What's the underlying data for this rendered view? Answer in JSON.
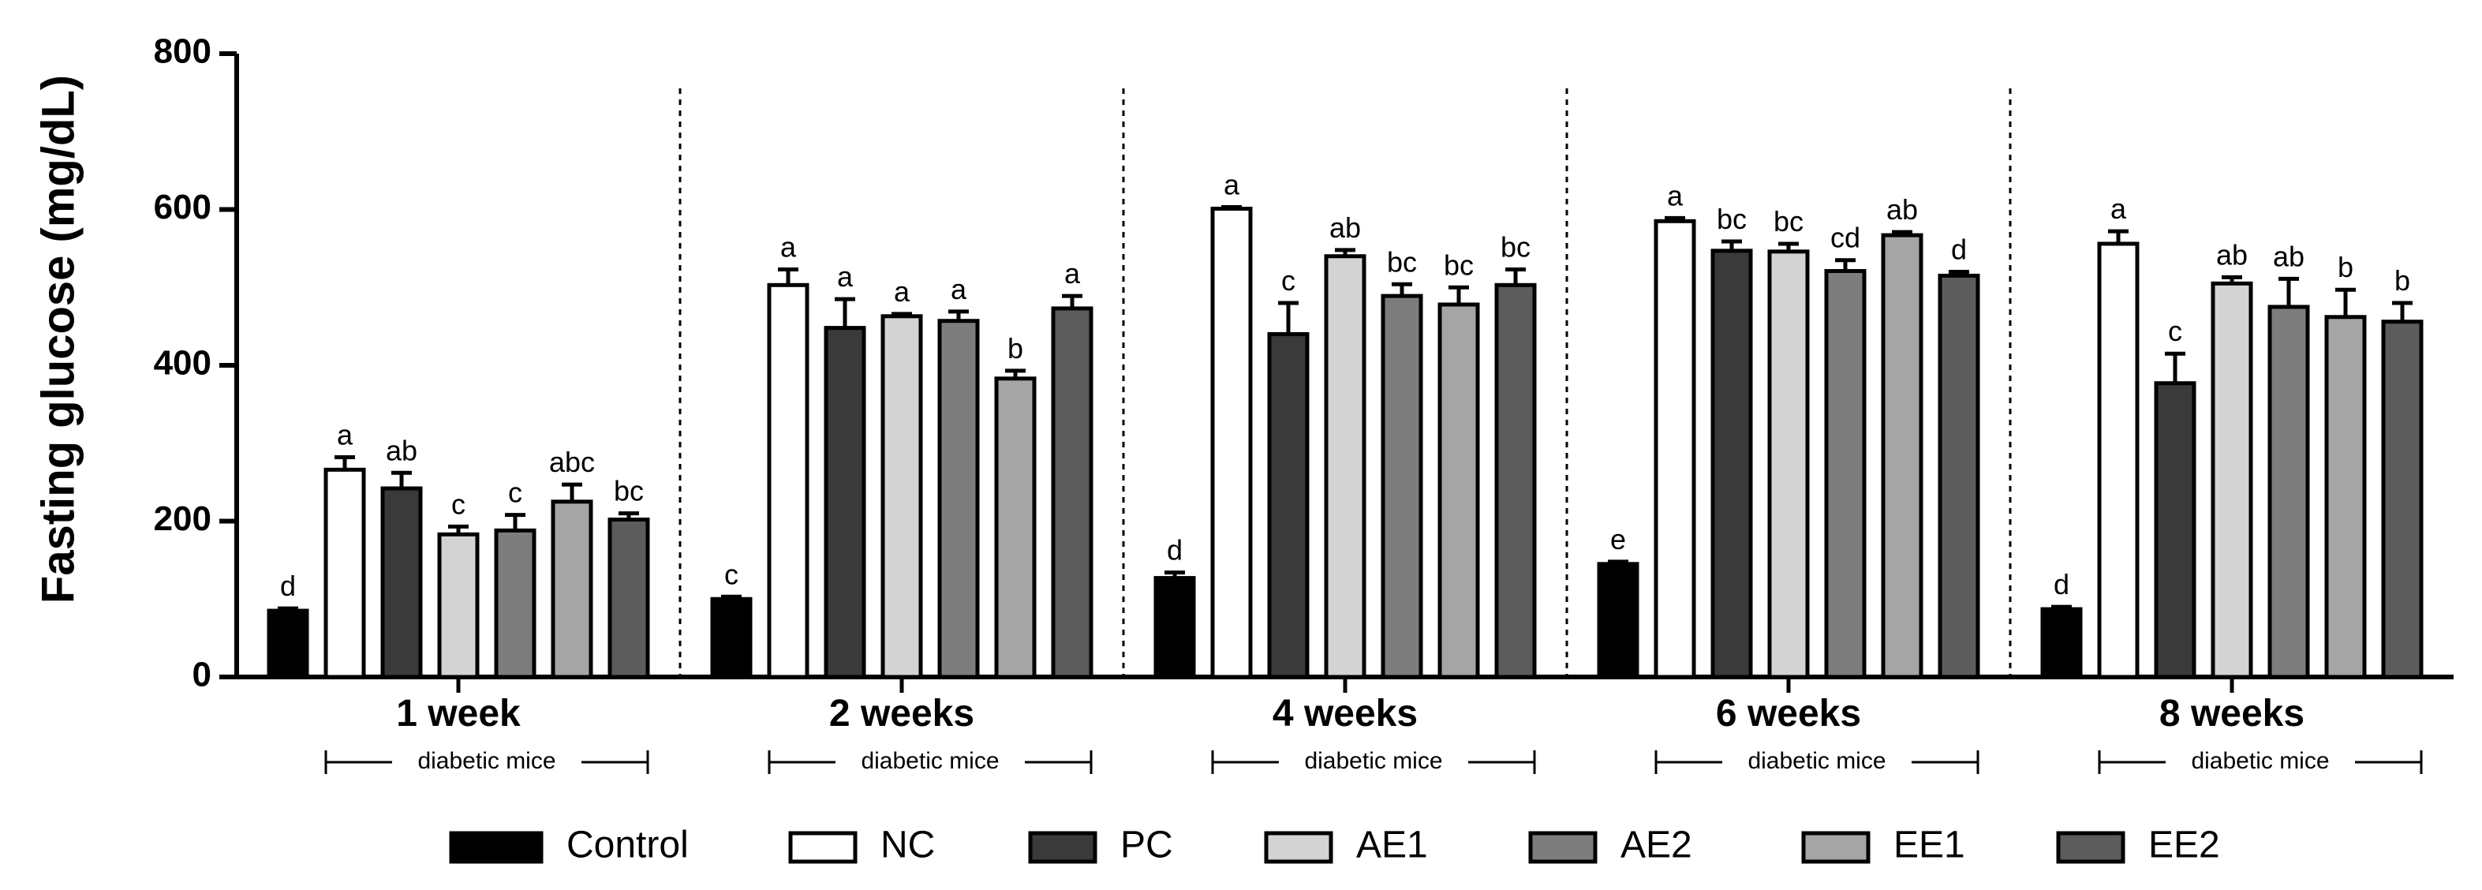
{
  "chart_data": {
    "type": "bar",
    "title": "",
    "xlabel": "",
    "ylabel": "Fasting glucose (mg/dL)",
    "ylim": [
      0,
      800
    ],
    "yticks": [
      "0",
      "200",
      "400",
      "600",
      "800"
    ],
    "categories": [
      "1 week",
      "2 weeks",
      "4 weeks",
      "6 weeks",
      "8 weeks"
    ],
    "subgroup_label": "diabetic mice",
    "series": [
      {
        "name": "Control",
        "color": "#000000",
        "values": [
          85,
          100,
          127,
          145,
          87
        ],
        "errors": [
          3,
          3,
          7,
          3,
          3
        ],
        "letters": [
          "d",
          "c",
          "d",
          "e",
          "d"
        ]
      },
      {
        "name": "NC",
        "color": "#ffffff",
        "values": [
          266,
          503,
          601,
          585,
          556
        ],
        "errors": [
          16,
          20,
          2,
          4,
          16
        ],
        "letters": [
          "a",
          "a",
          "a",
          "a",
          "a"
        ]
      },
      {
        "name": "PC",
        "color": "#3a3a3a",
        "values": [
          242,
          448,
          440,
          547,
          377
        ],
        "errors": [
          20,
          37,
          40,
          12,
          38
        ],
        "letters": [
          "ab",
          "a",
          "c",
          "bc",
          "c"
        ]
      },
      {
        "name": "AE1",
        "color": "#d3d3d3",
        "values": [
          183,
          463,
          540,
          546,
          505
        ],
        "errors": [
          10,
          3,
          8,
          10,
          8
        ],
        "letters": [
          "c",
          "a",
          "ab",
          "bc",
          "ab"
        ]
      },
      {
        "name": "AE2",
        "color": "#7d7d7d",
        "values": [
          188,
          457,
          489,
          521,
          475
        ],
        "errors": [
          20,
          12,
          15,
          14,
          36
        ],
        "letters": [
          "c",
          "a",
          "bc",
          "cd",
          "ab"
        ]
      },
      {
        "name": "EE1",
        "color": "#a5a5a5",
        "values": [
          225,
          383,
          478,
          567,
          462
        ],
        "errors": [
          22,
          10,
          22,
          4,
          35
        ],
        "letters": [
          "abc",
          "b",
          "bc",
          "ab",
          "b"
        ]
      },
      {
        "name": "EE2",
        "color": "#5c5c5c",
        "values": [
          202,
          473,
          503,
          515,
          456
        ],
        "errors": [
          8,
          16,
          20,
          5,
          24
        ],
        "letters": [
          "bc",
          "a",
          "bc",
          "d",
          "b"
        ]
      }
    ],
    "legend_position": "bottom"
  }
}
